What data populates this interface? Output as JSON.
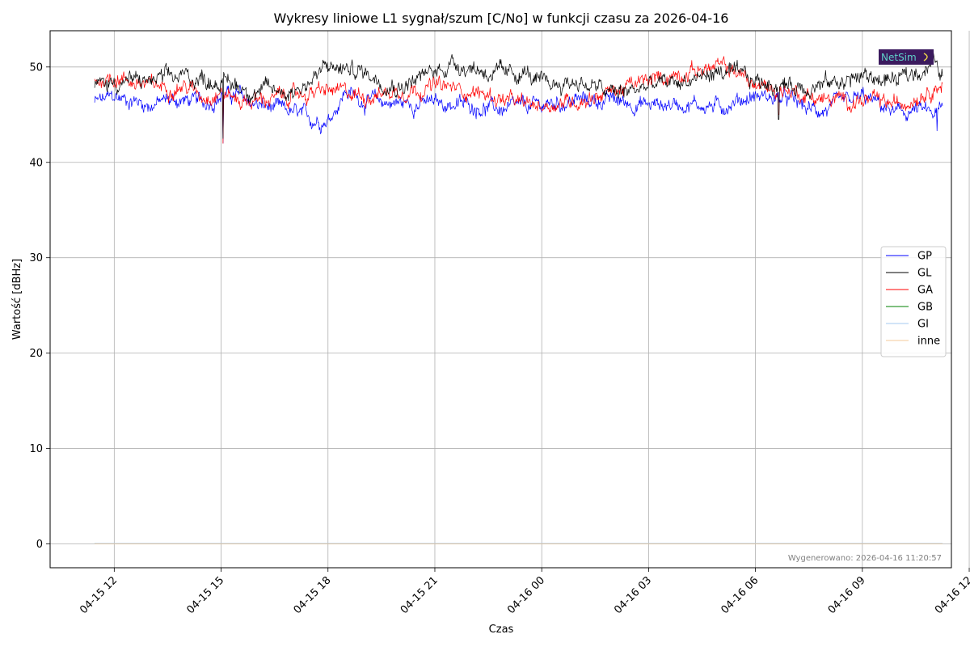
{
  "chart_data": {
    "type": "line",
    "title": "Wykresy liniowe L1 sygnał/szum [C/No] w funkcji czasu za 2026-04-16",
    "xlabel": "Czas",
    "ylabel": "Wartość [dBHz]",
    "x_range_hours": [
      -0.8,
      24.5
    ],
    "x_data_span_hours": [
      0.45,
      24.25
    ],
    "x_ticks": [
      {
        "h": 1,
        "label": "04-15 12"
      },
      {
        "h": 4,
        "label": "04-15 15"
      },
      {
        "h": 7,
        "label": "04-15 18"
      },
      {
        "h": 10,
        "label": "04-15 21"
      },
      {
        "h": 13,
        "label": "04-16 00"
      },
      {
        "h": 16,
        "label": "04-16 03"
      },
      {
        "h": 19,
        "label": "04-16 06"
      },
      {
        "h": 22,
        "label": "04-16 09"
      },
      {
        "h": 25,
        "label": "04-16 12"
      }
    ],
    "ylim": [
      -2.5,
      53.8
    ],
    "y_ticks": [
      0,
      10,
      20,
      30,
      40,
      50
    ],
    "grid": true,
    "legend_position": "right-middle",
    "series": [
      {
        "name": "GP",
        "color": "#0000ff",
        "noise": 0.9,
        "points": [
          [
            0.45,
            46.3
          ],
          [
            1.0,
            46.8
          ],
          [
            1.6,
            46.5
          ],
          [
            2.0,
            46.0
          ],
          [
            2.5,
            46.5
          ],
          [
            3.0,
            46.5
          ],
          [
            3.5,
            46.2
          ],
          [
            4.0,
            47.0
          ],
          [
            4.5,
            47.0
          ],
          [
            5.0,
            46.0
          ],
          [
            6.0,
            45.2
          ],
          [
            6.5,
            44.5
          ],
          [
            7.0,
            44.5
          ],
          [
            7.5,
            47.5
          ],
          [
            8.0,
            46.5
          ],
          [
            9.0,
            46.2
          ],
          [
            10.0,
            46.2
          ],
          [
            11.0,
            46.0
          ],
          [
            12.0,
            45.5
          ],
          [
            13.0,
            46.0
          ],
          [
            14.0,
            46.5
          ],
          [
            15.0,
            46.5
          ],
          [
            16.0,
            46.0
          ],
          [
            17.0,
            46.2
          ],
          [
            18.0,
            45.8
          ],
          [
            18.5,
            46.5
          ],
          [
            19.0,
            47.0
          ],
          [
            20.0,
            46.5
          ],
          [
            20.5,
            45.5
          ],
          [
            21.0,
            45.5
          ],
          [
            22.0,
            46.8
          ],
          [
            22.5,
            46.0
          ],
          [
            23.0,
            45.0
          ],
          [
            23.5,
            45.5
          ],
          [
            24.0,
            45.0
          ],
          [
            24.25,
            45.5
          ]
        ],
        "spikes": [
          [
            4.05,
            42.0
          ],
          [
            24.1,
            43.3
          ]
        ]
      },
      {
        "name": "GL",
        "color": "#000000",
        "noise": 1.0,
        "points": [
          [
            0.45,
            48.0
          ],
          [
            1.0,
            48.5
          ],
          [
            2.0,
            48.5
          ],
          [
            3.0,
            49.0
          ],
          [
            4.0,
            48.5
          ],
          [
            4.5,
            48.0
          ],
          [
            5.0,
            47.5
          ],
          [
            6.0,
            47.5
          ],
          [
            6.5,
            48.5
          ],
          [
            7.0,
            50.0
          ],
          [
            8.0,
            49.5
          ],
          [
            9.0,
            48.0
          ],
          [
            10.0,
            49.5
          ],
          [
            10.5,
            50.5
          ],
          [
            11.0,
            50.0
          ],
          [
            12.0,
            49.0
          ],
          [
            12.5,
            49.5
          ],
          [
            13.0,
            48.0
          ],
          [
            14.0,
            48.5
          ],
          [
            15.0,
            47.2
          ],
          [
            15.5,
            47.5
          ],
          [
            16.0,
            48.0
          ],
          [
            17.0,
            48.5
          ],
          [
            18.0,
            49.5
          ],
          [
            19.0,
            48.5
          ],
          [
            20.0,
            48.0
          ],
          [
            21.0,
            48.2
          ],
          [
            22.0,
            49.0
          ],
          [
            23.0,
            48.5
          ],
          [
            24.0,
            50.5
          ],
          [
            24.25,
            49.0
          ]
        ],
        "spikes": [
          [
            4.05,
            42.5
          ],
          [
            19.65,
            44.5
          ]
        ]
      },
      {
        "name": "GA",
        "color": "#ff0000",
        "noise": 0.9,
        "points": [
          [
            0.45,
            48.5
          ],
          [
            1.0,
            49.0
          ],
          [
            2.0,
            48.0
          ],
          [
            3.0,
            48.0
          ],
          [
            3.5,
            47.0
          ],
          [
            4.0,
            47.5
          ],
          [
            4.5,
            46.5
          ],
          [
            5.0,
            46.5
          ],
          [
            6.0,
            47.0
          ],
          [
            7.0,
            47.5
          ],
          [
            8.0,
            47.0
          ],
          [
            9.0,
            47.5
          ],
          [
            10.0,
            48.0
          ],
          [
            11.0,
            47.5
          ],
          [
            12.0,
            46.5
          ],
          [
            12.5,
            46.0
          ],
          [
            13.0,
            46.0
          ],
          [
            14.0,
            46.5
          ],
          [
            15.0,
            47.5
          ],
          [
            16.0,
            48.5
          ],
          [
            17.0,
            49.5
          ],
          [
            18.0,
            50.0
          ],
          [
            18.5,
            49.5
          ],
          [
            19.0,
            48.0
          ],
          [
            20.0,
            47.5
          ],
          [
            21.0,
            46.5
          ],
          [
            22.0,
            46.5
          ],
          [
            23.0,
            46.0
          ],
          [
            24.0,
            48.0
          ],
          [
            24.25,
            48.2
          ]
        ],
        "spikes": [
          [
            4.05,
            42.0
          ],
          [
            19.65,
            45.0
          ]
        ]
      },
      {
        "name": "GB",
        "color": "#008000",
        "noise": 0,
        "points": [
          [
            0.45,
            0.05
          ],
          [
            24.25,
            0.05
          ]
        ],
        "spikes": []
      },
      {
        "name": "GI",
        "color": "#a6c8f0",
        "noise": 0,
        "points": [
          [
            0.45,
            0.05
          ],
          [
            24.25,
            0.05
          ]
        ],
        "spikes": []
      },
      {
        "name": "inne",
        "color": "#f5c89a",
        "noise": 0,
        "points": [
          [
            0.45,
            0.0
          ],
          [
            24.25,
            0.0
          ]
        ],
        "spikes": []
      }
    ]
  },
  "logo": {
    "text": "NetSim",
    "bg": "#3b1a5e",
    "fg": "#5fd1c9"
  },
  "footer": "Wygenerowano: 2026-04-16 11:20:57"
}
